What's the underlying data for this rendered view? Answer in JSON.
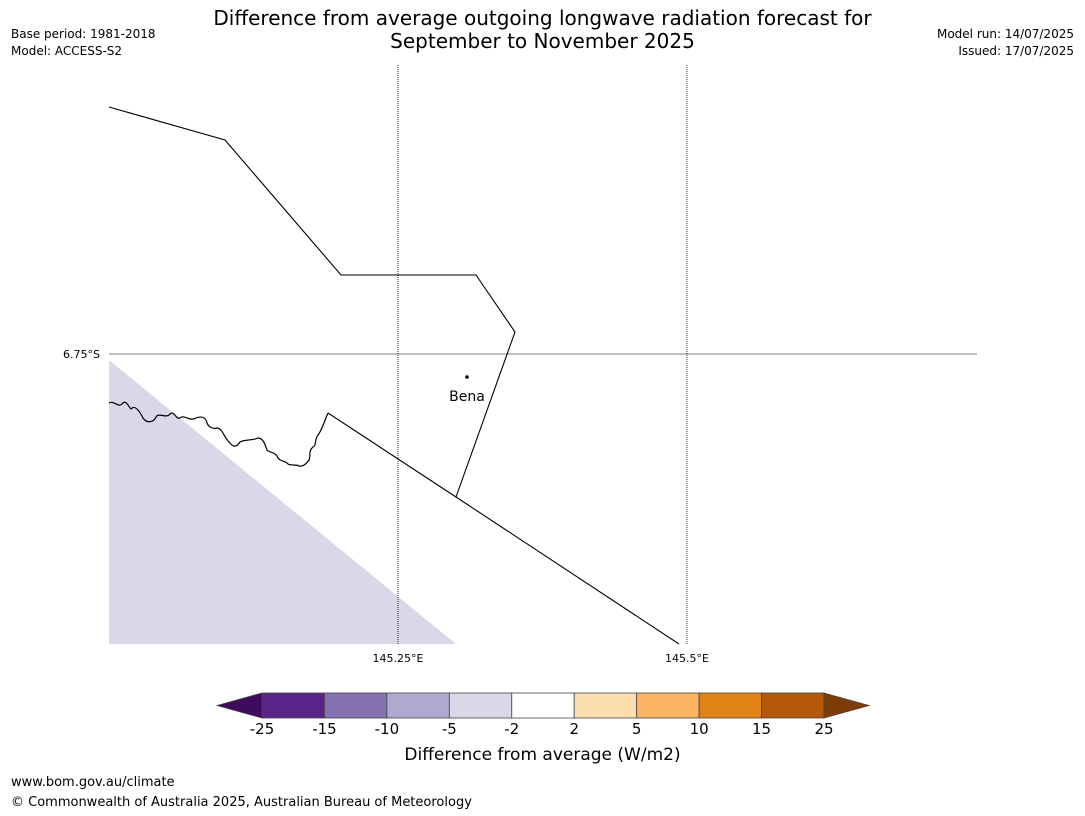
{
  "title": {
    "line1": "Difference from average outgoing longwave radiation forecast for",
    "line2": "September to November 2025"
  },
  "meta_left": {
    "base_period": "Base period: 1981-2018",
    "model": "Model: ACCESS-S2"
  },
  "meta_right": {
    "model_run": "Model run: 14/07/2025",
    "issued": "Issued: 17/07/2025"
  },
  "map": {
    "latitude_labels": [
      "6.75°S"
    ],
    "longitude_labels": [
      "145.25°E",
      "145.5°E"
    ],
    "place": "Bena",
    "shaded_category": "-5 to -2"
  },
  "colorbar": {
    "ticks": [
      "-25",
      "-15",
      "-10",
      "-5",
      "-2",
      "2",
      "5",
      "10",
      "15",
      "25"
    ],
    "colors": [
      "#3f0b5e",
      "#5a2388",
      "#8371b0",
      "#afa8d1",
      "#d8d8e9",
      "#ffffff",
      "#fddeb1",
      "#fbb461",
      "#e08214",
      "#b35806",
      "#7f3b08"
    ],
    "label": "Difference from average (W/m2)"
  },
  "footer": {
    "url": "www.bom.gov.au/climate",
    "copyright": "© Commonwealth of Australia 2025, Australian Bureau of Meteorology"
  }
}
